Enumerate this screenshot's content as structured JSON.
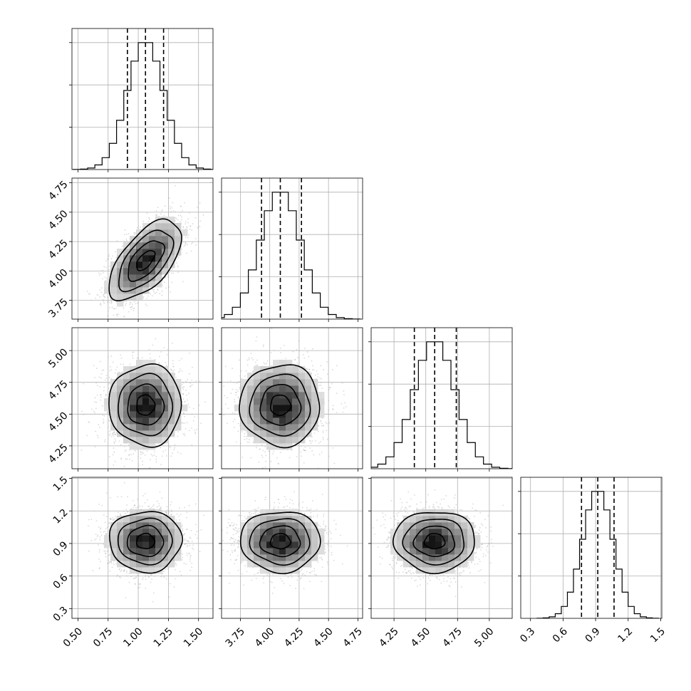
{
  "chart_data": {
    "type": "corner",
    "title": "",
    "parameters": [
      {
        "mean": 1.06,
        "sd": 0.15,
        "quantiles": [
          0.91,
          1.06,
          1.21
        ],
        "range": [
          0.45,
          1.62
        ],
        "ticks": [
          0.5,
          0.75,
          1.0,
          1.25,
          1.5
        ],
        "tick_labels": [
          "0.50",
          "0.75",
          "1.00",
          "1.25",
          "1.50"
        ]
      },
      {
        "mean": 4.09,
        "sd": 0.17,
        "quantiles": [
          3.93,
          4.09,
          4.27
        ],
        "range": [
          3.59,
          4.79
        ],
        "ticks": [
          3.75,
          4.0,
          4.25,
          4.5,
          4.75
        ],
        "tick_labels": [
          "3.75",
          "4.00",
          "4.25",
          "4.50",
          "4.75"
        ]
      },
      {
        "mean": 4.57,
        "sd": 0.16,
        "quantiles": [
          4.41,
          4.57,
          4.74
        ],
        "range": [
          4.07,
          5.18
        ],
        "ticks": [
          4.25,
          4.5,
          4.75,
          5.0
        ],
        "tick_labels": [
          "4.25",
          "4.50",
          "4.75",
          "5.00"
        ]
      },
      {
        "mean": 0.92,
        "sd": 0.14,
        "quantiles": [
          0.77,
          0.92,
          1.07
        ],
        "range": [
          0.21,
          1.51
        ],
        "ticks": [
          0.3,
          0.6,
          0.9,
          1.2,
          1.5
        ],
        "tick_labels": [
          "0.3",
          "0.6",
          "0.9",
          "1.2",
          "1.5"
        ]
      }
    ],
    "correlations": [
      {
        "pair": [
          0,
          1
        ],
        "r": 0.6
      },
      {
        "pair": [
          0,
          2
        ],
        "r": 0.0
      },
      {
        "pair": [
          1,
          2
        ],
        "r": 0.0
      },
      {
        "pair": [
          0,
          3
        ],
        "r": 0.0
      },
      {
        "pair": [
          1,
          3
        ],
        "r": 0.0
      },
      {
        "pair": [
          2,
          3
        ],
        "r": 0.0
      }
    ],
    "histogram_bins": 20,
    "contour_levels": [
      0.5,
      1.0,
      1.5,
      2.0
    ],
    "grid": true,
    "legend": "none",
    "colors": {
      "contour": "#000000",
      "points": "#bbbbbb",
      "hist": "#000000",
      "grid": "#b0b0b0"
    }
  }
}
